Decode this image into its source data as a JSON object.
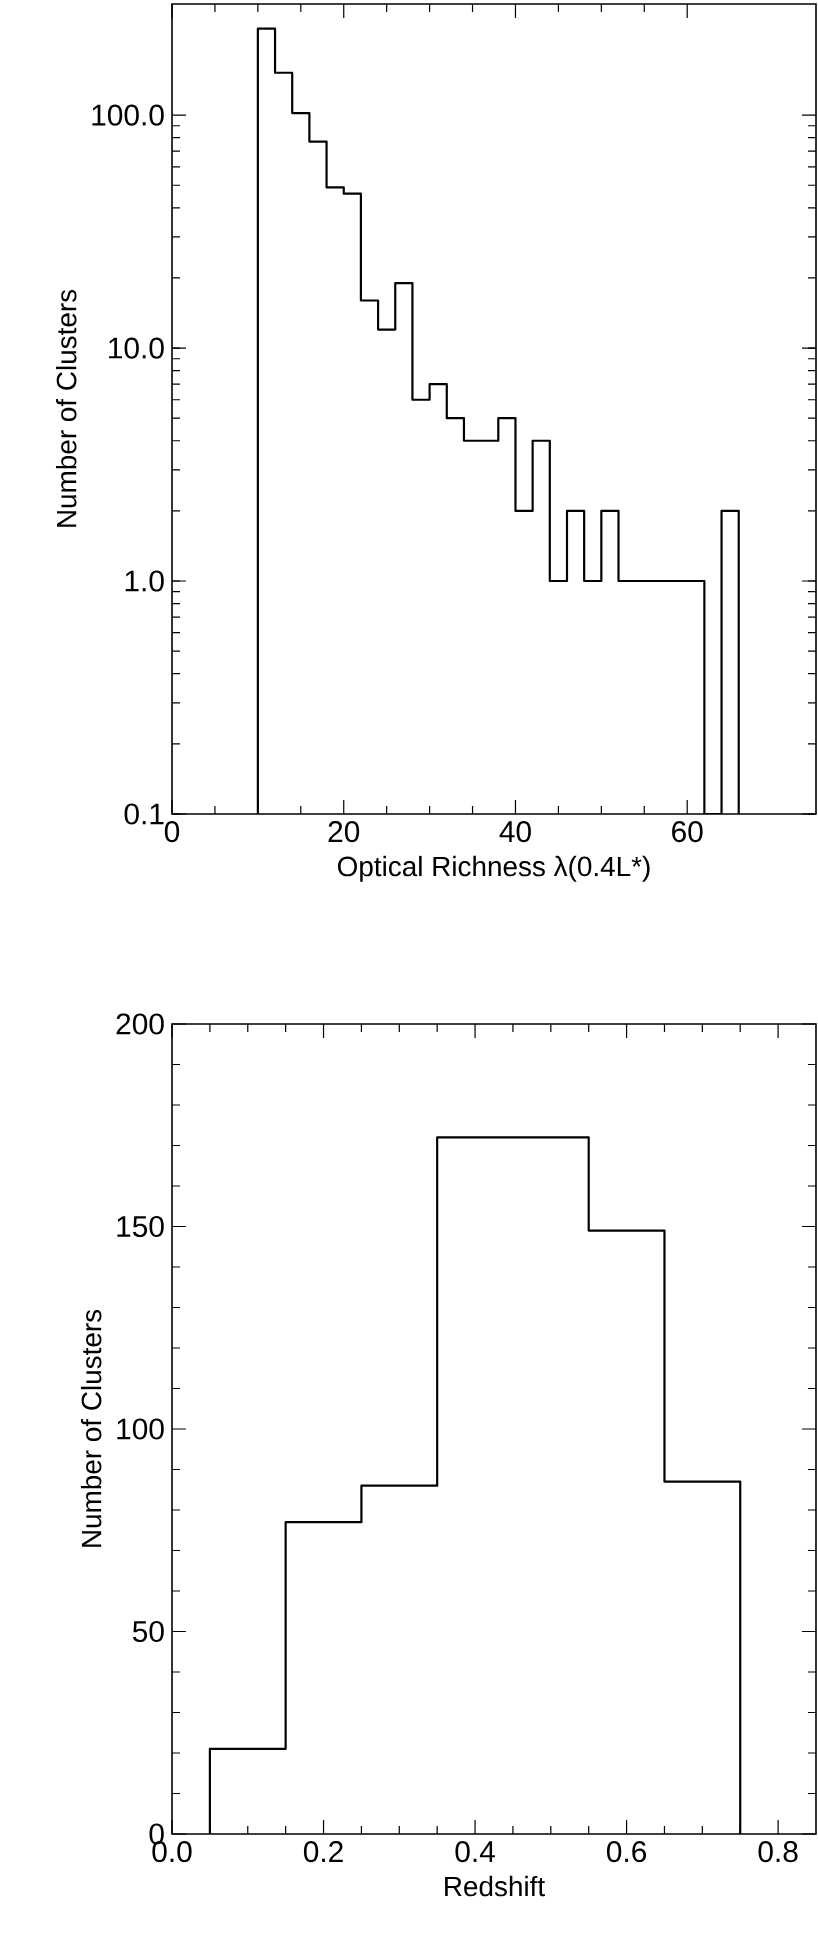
{
  "chart_data": [
    {
      "type": "histogram",
      "xlabel": "Optical Richness λ(0.4L*)",
      "ylabel": "Number of Clusters",
      "log": "y",
      "color": "#000000",
      "bins": [
        10,
        12,
        14,
        16,
        18,
        20,
        22,
        24,
        26,
        28,
        30,
        32,
        34,
        36,
        38,
        40,
        42,
        44,
        46,
        48,
        50,
        52,
        54,
        56,
        58,
        60,
        62,
        64,
        66
      ],
      "values": [
        235,
        152,
        102,
        77,
        49,
        46,
        16,
        12,
        19,
        6,
        7,
        5,
        4,
        4,
        5,
        2,
        4,
        1,
        2,
        1,
        2,
        1,
        1,
        1,
        1,
        1,
        null,
        2
      ],
      "xlim": [
        0,
        75
      ],
      "ylim": [
        0.1,
        300
      ],
      "xticks": [
        0,
        20,
        40,
        60
      ],
      "yticks": [
        {
          "value": 0.1,
          "label": "0.1"
        },
        {
          "value": 1,
          "label": "1.0"
        },
        {
          "value": 10,
          "label": "10.0"
        },
        {
          "value": 100,
          "label": "100.0"
        }
      ]
    },
    {
      "type": "histogram",
      "xlabel": "Redshift",
      "ylabel": "Number of Clusters",
      "color": "#000000",
      "bins": [
        0.05,
        0.15,
        0.25,
        0.35,
        0.45,
        0.55,
        0.65,
        0.75
      ],
      "values": [
        21,
        77,
        86,
        172,
        172,
        149,
        87
      ],
      "xlim": [
        0,
        0.85
      ],
      "ylim": [
        0,
        200
      ],
      "xticks": [
        {
          "value": 0,
          "label": "0.0"
        },
        {
          "value": 0.2,
          "label": "0.2"
        },
        {
          "value": 0.4,
          "label": "0.4"
        },
        {
          "value": 0.6,
          "label": "0.6"
        },
        {
          "value": 0.8,
          "label": "0.8"
        }
      ],
      "yticks": [
        0,
        50,
        100,
        150,
        200
      ]
    }
  ]
}
